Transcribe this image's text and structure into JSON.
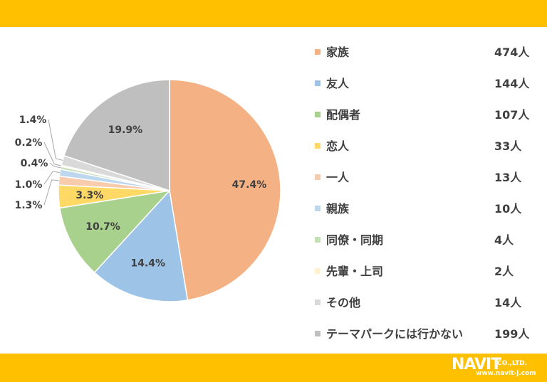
{
  "theme": {
    "band_color": "#FFC000"
  },
  "chart_data": {
    "type": "pie",
    "start_angle_deg": 0,
    "direction": "clockwise",
    "slices": [
      {
        "label": "家族",
        "count": "474人",
        "percent": 47.4,
        "percent_label": "47.4%",
        "color": "#F4B183"
      },
      {
        "label": "友人",
        "count": "144人",
        "percent": 14.4,
        "percent_label": "14.4%",
        "color": "#9DC3E6"
      },
      {
        "label": "配偶者",
        "count": "107人",
        "percent": 10.7,
        "percent_label": "10.7%",
        "color": "#A9D18E"
      },
      {
        "label": "恋人",
        "count": "33人",
        "percent": 3.3,
        "percent_label": "3.3%",
        "color": "#FFD966"
      },
      {
        "label": "一人",
        "count": "13人",
        "percent": 1.3,
        "percent_label": "1.3%",
        "color": "#F8CBAD"
      },
      {
        "label": "親族",
        "count": "10人",
        "percent": 1.0,
        "percent_label": "1.0%",
        "color": "#BDD7EE"
      },
      {
        "label": "同僚・同期",
        "count": "4人",
        "percent": 0.4,
        "percent_label": "0.4%",
        "color": "#C5E0B4"
      },
      {
        "label": "先輩・上司",
        "count": "2人",
        "percent": 0.2,
        "percent_label": "0.2%",
        "color": "#FFF2CC"
      },
      {
        "label": "その他",
        "count": "14人",
        "percent": 1.4,
        "percent_label": "1.4%",
        "color": "#D9D9D9"
      },
      {
        "label": "テーマパークには行かない",
        "count": "199人",
        "percent": 19.9,
        "percent_label": "19.9%",
        "color": "#BFBFBF"
      }
    ]
  },
  "logo": {
    "name": "NAVIT",
    "suffix": "CO.,LTD.",
    "url": "www.navit-j.com"
  }
}
